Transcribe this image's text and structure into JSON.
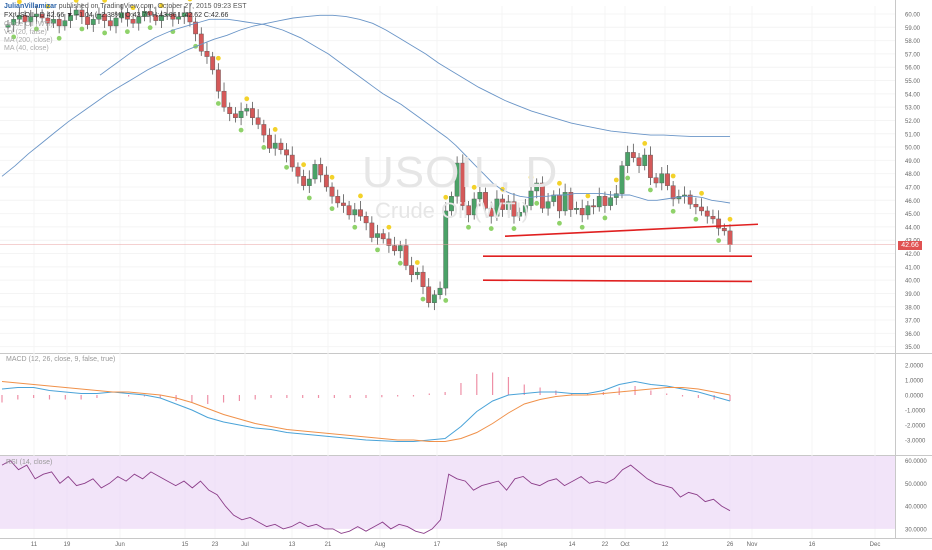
{
  "header": {
    "author": "JulianVillamizar",
    "published": "published on TradingView.com, October 27, 2015 09:23 EST",
    "quote_line": "FX:USOIL, D  42.66  ▼ −1.04 (−2.38%)  O:43.70  H:43.86  L:42.62  C:42.66",
    "ind1": "Crude Oil (WTI)",
    "ind2": "Vol (20, false)",
    "ind3": "MA (200, close)",
    "ind4": "MA (40, close)"
  },
  "watermark": {
    "symbol": "USOIL, D",
    "subtitle": "Crude Oil (WTI)"
  },
  "macd_label": "MACD (12, 26, close, 9, false, true)",
  "rsi_label": "RSI (14, close)",
  "last_price": "42.66",
  "colors": {
    "up": "#4aa267",
    "down": "#d45959",
    "ma": "#6a95c7",
    "macd": "#4aa3d8",
    "signal": "#f0914a",
    "rsi": "#8c3e8a",
    "rsi_band": "#ecd9f6",
    "trendline": "#e02020"
  },
  "chart_data": [
    {
      "type": "candlestick",
      "pane": "price",
      "y_ticks": [
        "60.00",
        "59.00",
        "58.00",
        "57.00",
        "56.00",
        "55.00",
        "54.00",
        "53.00",
        "52.00",
        "51.00",
        "50.00",
        "49.00",
        "48.00",
        "47.00",
        "46.00",
        "45.00",
        "44.00",
        "43.00",
        "42.00",
        "41.00",
        "40.00",
        "39.00",
        "38.00",
        "37.00",
        "36.00",
        "35.00"
      ],
      "ylim": [
        34.6,
        60.6
      ],
      "x_ticks": [
        "11",
        "19",
        "Jun",
        "15",
        "23",
        "Jul",
        "13",
        "21",
        "Aug",
        "17",
        "Sep",
        "14",
        "22",
        "Oct",
        "12",
        "26",
        "Nov",
        "16",
        "Dec"
      ],
      "closes": [
        59.2,
        59.6,
        59.9,
        59.4,
        59.8,
        60.0,
        59.7,
        59.3,
        59.6,
        59.1,
        59.5,
        59.9,
        60.3,
        59.8,
        59.2,
        59.6,
        60.0,
        59.5,
        59.1,
        59.7,
        60.1,
        59.6,
        59.3,
        59.8,
        60.2,
        59.9,
        59.5,
        59.9,
        60.0,
        59.6,
        59.8,
        60.1,
        59.4,
        58.5,
        57.2,
        56.8,
        55.8,
        54.2,
        53.0,
        52.5,
        52.2,
        52.7,
        52.9,
        52.2,
        51.7,
        50.9,
        49.9,
        50.3,
        49.8,
        49.4,
        48.5,
        47.8,
        47.1,
        47.6,
        48.7,
        47.9,
        47.0,
        46.3,
        45.8,
        45.6,
        44.9,
        45.3,
        44.8,
        44.3,
        43.2,
        43.5,
        43.1,
        42.6,
        42.2,
        42.6,
        41.1,
        40.4,
        40.6,
        39.5,
        38.3,
        38.9,
        39.4,
        45.2,
        46.3,
        48.8,
        45.6,
        44.9,
        46.1,
        46.6,
        45.4,
        44.8,
        46.1,
        45.3,
        45.9,
        44.8,
        45.1,
        45.6,
        46.7,
        47.3,
        45.4,
        45.9,
        46.4,
        45.2,
        46.6,
        45.3,
        45.4,
        44.9,
        45.6,
        45.5,
        46.3,
        45.6,
        46.2,
        46.5,
        48.6,
        49.6,
        49.2,
        48.6,
        49.4,
        47.7,
        47.3,
        48.0,
        47.1,
        46.1,
        46.3,
        46.4,
        45.7,
        45.5,
        45.2,
        44.8,
        44.6,
        43.9,
        43.7,
        42.66
      ],
      "x_start_price": 59.0,
      "ma40": [
        55.4,
        55.9,
        56.4,
        56.9,
        57.4,
        57.8,
        58.2,
        58.5,
        58.8,
        59.0,
        59.2,
        59.4,
        59.6,
        59.6,
        59.6,
        59.5,
        59.4,
        59.3,
        59.2,
        59.0,
        58.8,
        58.5,
        58.2,
        57.8,
        57.4,
        57.0,
        56.5,
        56.0,
        55.5,
        55.0,
        54.5,
        54.0,
        53.6,
        53.2,
        52.7,
        52.2,
        51.7,
        51.2,
        50.7,
        50.1,
        49.4,
        48.7,
        48.0,
        47.3,
        46.8,
        46.5,
        46.3,
        46.2,
        46.3,
        46.3,
        46.4,
        46.4,
        46.5,
        46.5,
        46.5,
        46.5,
        46.4,
        46.4,
        46.4,
        46.2,
        46.0,
        46.0,
        46.1,
        46.2,
        46.3,
        46.3,
        46.2,
        46.0,
        45.9,
        45.8
      ],
      "ma200": [
        47.8,
        48.6,
        49.5,
        50.3,
        51.1,
        51.9,
        52.6,
        53.3,
        54.0,
        54.6,
        55.2,
        55.8,
        56.3,
        56.8,
        57.3,
        57.7,
        58.1,
        58.4,
        58.8,
        59.1,
        59.3,
        59.5,
        59.7,
        59.8,
        59.9,
        59.9,
        59.8,
        59.6,
        59.3,
        58.8,
        58.2,
        57.6,
        57.0,
        56.3,
        55.7,
        55.1,
        54.5,
        54.0,
        53.5,
        53.1,
        52.7,
        52.4,
        52.1,
        51.8,
        51.6,
        51.4,
        51.2,
        51.1,
        51.0,
        50.9,
        50.9,
        50.85,
        50.8,
        50.8,
        50.8,
        50.8
      ],
      "annotations": [
        "trendline 43.3→44.2 (Sep→Oct end)",
        "support 41.8",
        "support 40.0"
      ]
    },
    {
      "type": "line",
      "pane": "MACD",
      "y_ticks": [
        "2.0000",
        "1.0000",
        "0.0000",
        "-1.0000",
        "-2.0000",
        "-3.0000"
      ],
      "ylim": [
        -3.8,
        2.6
      ],
      "series": [
        {
          "name": "MACD",
          "values": [
            0.4,
            0.5,
            0.5,
            0.3,
            0.2,
            0.1,
            0.1,
            0.2,
            0.1,
            0.0,
            -0.2,
            -0.6,
            -1.0,
            -1.5,
            -1.8,
            -2.0,
            -2.2,
            -2.3,
            -2.5,
            -2.6,
            -2.7,
            -2.8,
            -2.9,
            -3.0,
            -3.05,
            -3.1,
            -3.1,
            -3.0,
            -2.9,
            -2.1,
            -1.1,
            -0.4,
            0.0,
            0.1,
            0.2,
            0.2,
            0.1,
            0.1,
            0.3,
            0.7,
            0.9,
            0.7,
            0.6,
            0.4,
            0.2,
            -0.1,
            -0.4
          ]
        },
        {
          "name": "Signal",
          "values": [
            0.9,
            0.8,
            0.7,
            0.6,
            0.5,
            0.4,
            0.3,
            0.2,
            0.2,
            0.1,
            0.0,
            -0.2,
            -0.5,
            -0.9,
            -1.3,
            -1.6,
            -1.9,
            -2.1,
            -2.3,
            -2.4,
            -2.5,
            -2.6,
            -2.7,
            -2.8,
            -2.9,
            -3.0,
            -3.0,
            -3.1,
            -3.1,
            -2.9,
            -2.5,
            -1.9,
            -1.2,
            -0.6,
            -0.3,
            -0.1,
            0.0,
            0.0,
            0.1,
            0.2,
            0.3,
            0.4,
            0.5,
            0.5,
            0.4,
            0.2,
            0.0
          ]
        }
      ]
    },
    {
      "type": "line",
      "pane": "RSI",
      "y_ticks": [
        "60.0000",
        "50.0000",
        "40.0000",
        "30.0000"
      ],
      "ylim": [
        26,
        62
      ],
      "series": [
        {
          "name": "RSI",
          "values": [
            58,
            60,
            56,
            58,
            52,
            54,
            55,
            50,
            53,
            49,
            50,
            52,
            48,
            50,
            53,
            51,
            54,
            52,
            55,
            53,
            51,
            49,
            51,
            48,
            51,
            47,
            45,
            40,
            36,
            34,
            35,
            33,
            31,
            32,
            30,
            31,
            33,
            31,
            32,
            30,
            30,
            28,
            29,
            31,
            29,
            31,
            33,
            30,
            32,
            31,
            29,
            28,
            30,
            34,
            54,
            52,
            51,
            47,
            49,
            50,
            51,
            47,
            52,
            53,
            50,
            49,
            51,
            52,
            49,
            51,
            53,
            50,
            51,
            50,
            52,
            56,
            58,
            55,
            52,
            50,
            49,
            48,
            44,
            46,
            45,
            42,
            43,
            40,
            38
          ]
        }
      ]
    }
  ]
}
